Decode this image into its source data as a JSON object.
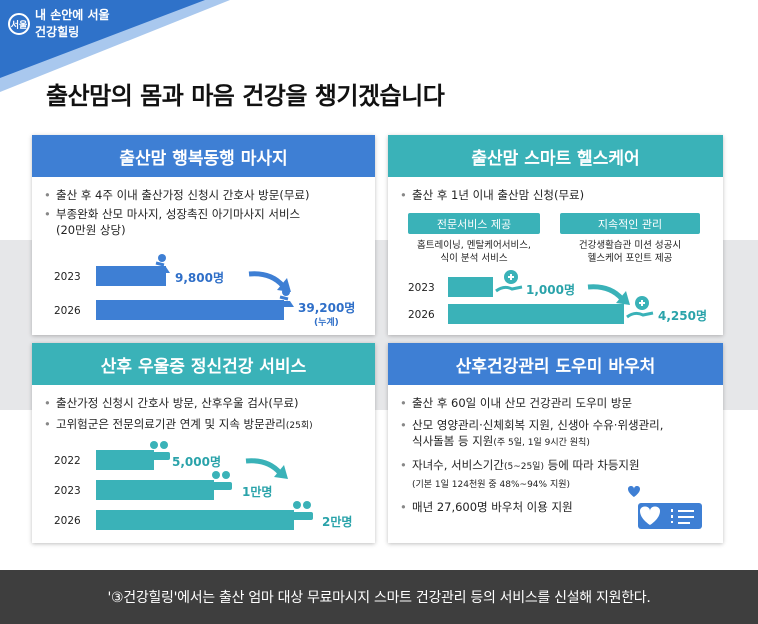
{
  "logo": {
    "mark": "서울",
    "line1": "내 손안에 서울",
    "line2": "건강힐링"
  },
  "headline": "출산맘의 몸과 마음 건강을 챙기겠습니다",
  "massage": {
    "title": "출산맘 행복동행 마사지",
    "bullet1": "출산 후 4주 이내 출산가정 신청시 간호사 방문(무료)",
    "bullet2a": "부종완화 산모 마사지, 성장촉진 아기마사지 서비스",
    "bullet2b": "(20만원 상당)",
    "rows": [
      {
        "year": "2023",
        "value": "9,800명"
      },
      {
        "year": "2026",
        "value": "39,200명"
      }
    ],
    "note": "(누계)",
    "icon": "massage-icon",
    "arrow": "curved-arrow-icon"
  },
  "smart": {
    "title": "출산맘 스마트 헬스케어",
    "bullet1": "출산 후 1년 이내 출산맘 신청(무료)",
    "pill1": "전문서비스 제공",
    "pill1_desc1": "홈트레이닝, 멘탈케어서비스,",
    "pill1_desc2": "식이 분석 서비스",
    "pill2": "지속적인 관리",
    "pill2_desc1": "건강생활습관 미션 성공시",
    "pill2_desc2": "헬스케어 포인트 제공",
    "rows": [
      {
        "year": "2023",
        "value": "1,000명"
      },
      {
        "year": "2026",
        "value": "4,250명"
      }
    ],
    "icon": "health-hand-icon"
  },
  "depression": {
    "title": "산후 우울증 정신건강 서비스",
    "bullet1": "출산가정 신청시 간호사 방문, 산후우울 검사(무료)",
    "bullet2": "고위험군은 전문의료기관 연계  및 지속 방문관리",
    "bullet2_small": "(25회)",
    "rows": [
      {
        "year": "2022",
        "value": "5,000명"
      },
      {
        "year": "2023",
        "value": "1만명"
      },
      {
        "year": "2026",
        "value": "2만명"
      }
    ],
    "icon": "counseling-icon"
  },
  "voucher": {
    "title": "산후건강관리 도우미 바우처",
    "bullet1": "출산 후 60일 이내 산모 건강관리 도우미 방문",
    "bullet2a": "산모 영양관리·신체회복 지원, 신생아 수유·위생관리,",
    "bullet2b": "식사돌봄 등 지원",
    "bullet2_small": "(주 5일, 1일 9시간 원칙)",
    "bullet3": "자녀수, 서비스기간",
    "bullet3_small": "(5~25일)",
    "bullet3_end": " 등에 따라 차등지원",
    "bullet3_sub": "(기본 1일 124천원 중 48%~94% 지원)",
    "bullet4": "매년 27,600명 바우처 이용 지원",
    "icon": "voucher-heart-icon"
  },
  "caption": "'③건강힐링'에서는 출산 엄마 대상 무료마시지 스마트 건강관리 등의 서비스를 신설해 지원한다.",
  "colors": {
    "blue": "#3e7fd4",
    "teal": "#3ab2b8",
    "band": "#e6e7e9",
    "caption_bg": "#3e3e3e"
  }
}
